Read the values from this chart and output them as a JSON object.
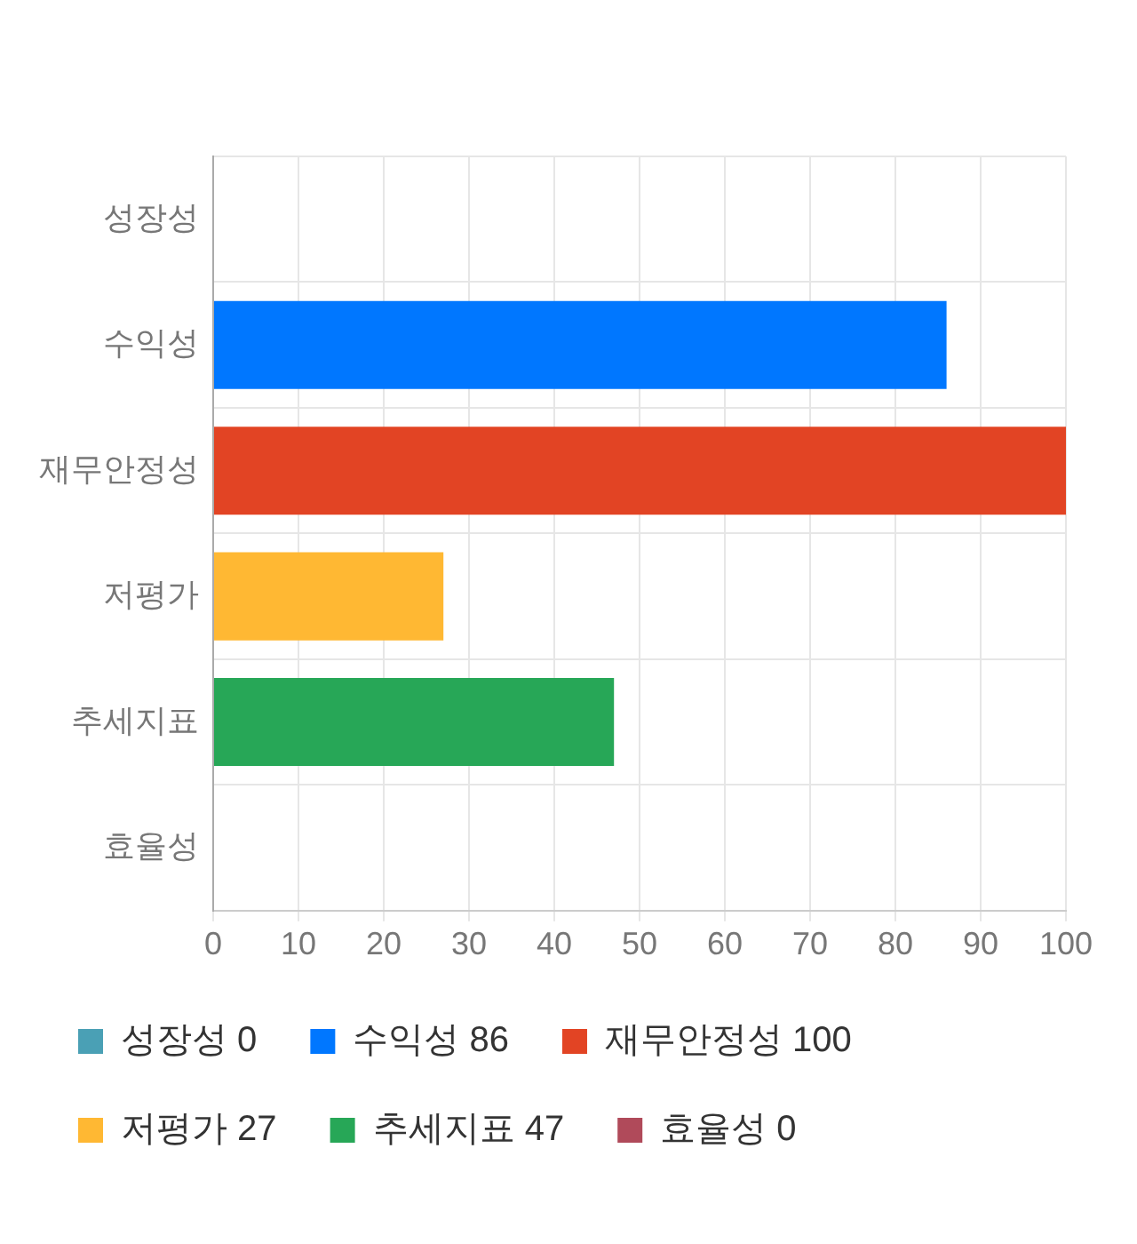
{
  "chart_data": {
    "type": "bar",
    "orientation": "horizontal",
    "stacked": true,
    "categories": [
      "성장성",
      "수익성",
      "재무안정성",
      "저평가",
      "추세지표",
      "효율성"
    ],
    "series": [
      {
        "name": "성장성 0",
        "color": "#4aa0b5",
        "values": [
          0,
          null,
          null,
          null,
          null,
          null
        ]
      },
      {
        "name": "수익성 86",
        "color": "#0077ff",
        "values": [
          null,
          86,
          null,
          null,
          null,
          null
        ]
      },
      {
        "name": "재무안정성 100",
        "color": "#e24424",
        "values": [
          null,
          null,
          100,
          null,
          null,
          null
        ]
      },
      {
        "name": "저평가 27",
        "color": "#ffb833",
        "values": [
          null,
          null,
          null,
          27,
          null,
          null
        ]
      },
      {
        "name": "추세지표 47",
        "color": "#27a757",
        "values": [
          null,
          null,
          null,
          null,
          47,
          null
        ]
      },
      {
        "name": "효율성 0",
        "color": "#b04a5a",
        "values": [
          null,
          null,
          null,
          null,
          null,
          0
        ]
      }
    ],
    "xlim": [
      0,
      100
    ],
    "xticks": [
      0,
      10,
      20,
      30,
      40,
      50,
      60,
      70,
      80,
      90,
      100
    ],
    "grid": true,
    "legend": "bottom"
  }
}
